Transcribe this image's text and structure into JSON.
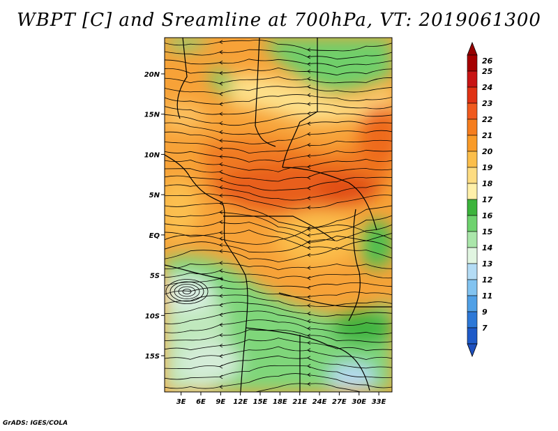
{
  "title": "WBPT [C] and Sreamline at 700hPa, VT: 2019061300",
  "credit": "GrADS: IGES/COLA",
  "map": {
    "lat_ticks": [
      "20N",
      "15N",
      "10N",
      "5N",
      "EQ",
      "5S",
      "10S",
      "15S"
    ],
    "lat_values": [
      20,
      15,
      10,
      5,
      0,
      -5,
      -10,
      -15
    ],
    "lon_ticks": [
      "3E",
      "6E",
      "9E",
      "12E",
      "15E",
      "18E",
      "21E",
      "24E",
      "27E",
      "30E",
      "33E"
    ],
    "lon_values": [
      3,
      6,
      9,
      12,
      15,
      18,
      21,
      24,
      27,
      30,
      33
    ],
    "lat_range": [
      -19.5,
      24.5
    ],
    "lon_range": [
      0.5,
      35
    ]
  },
  "colorbar": {
    "labels": [
      "26",
      "25",
      "24",
      "23",
      "22",
      "21",
      "20",
      "19",
      "18",
      "17",
      "16",
      "15",
      "14",
      "13",
      "12",
      "11",
      "9",
      "7"
    ],
    "colors": [
      "#a50000",
      "#c81414",
      "#e03214",
      "#f05a1e",
      "#f57d1e",
      "#f99b28",
      "#fbbe4b",
      "#fddc82",
      "#fff0aa",
      "#3cb43c",
      "#6ed26e",
      "#aae6aa",
      "#e1f5e1",
      "#b4dcf5",
      "#82c3f0",
      "#50a0e6",
      "#2d78d7",
      "#1e5ac8"
    ],
    "top_color": "#960000",
    "bottom_color": "#1e50be"
  }
}
